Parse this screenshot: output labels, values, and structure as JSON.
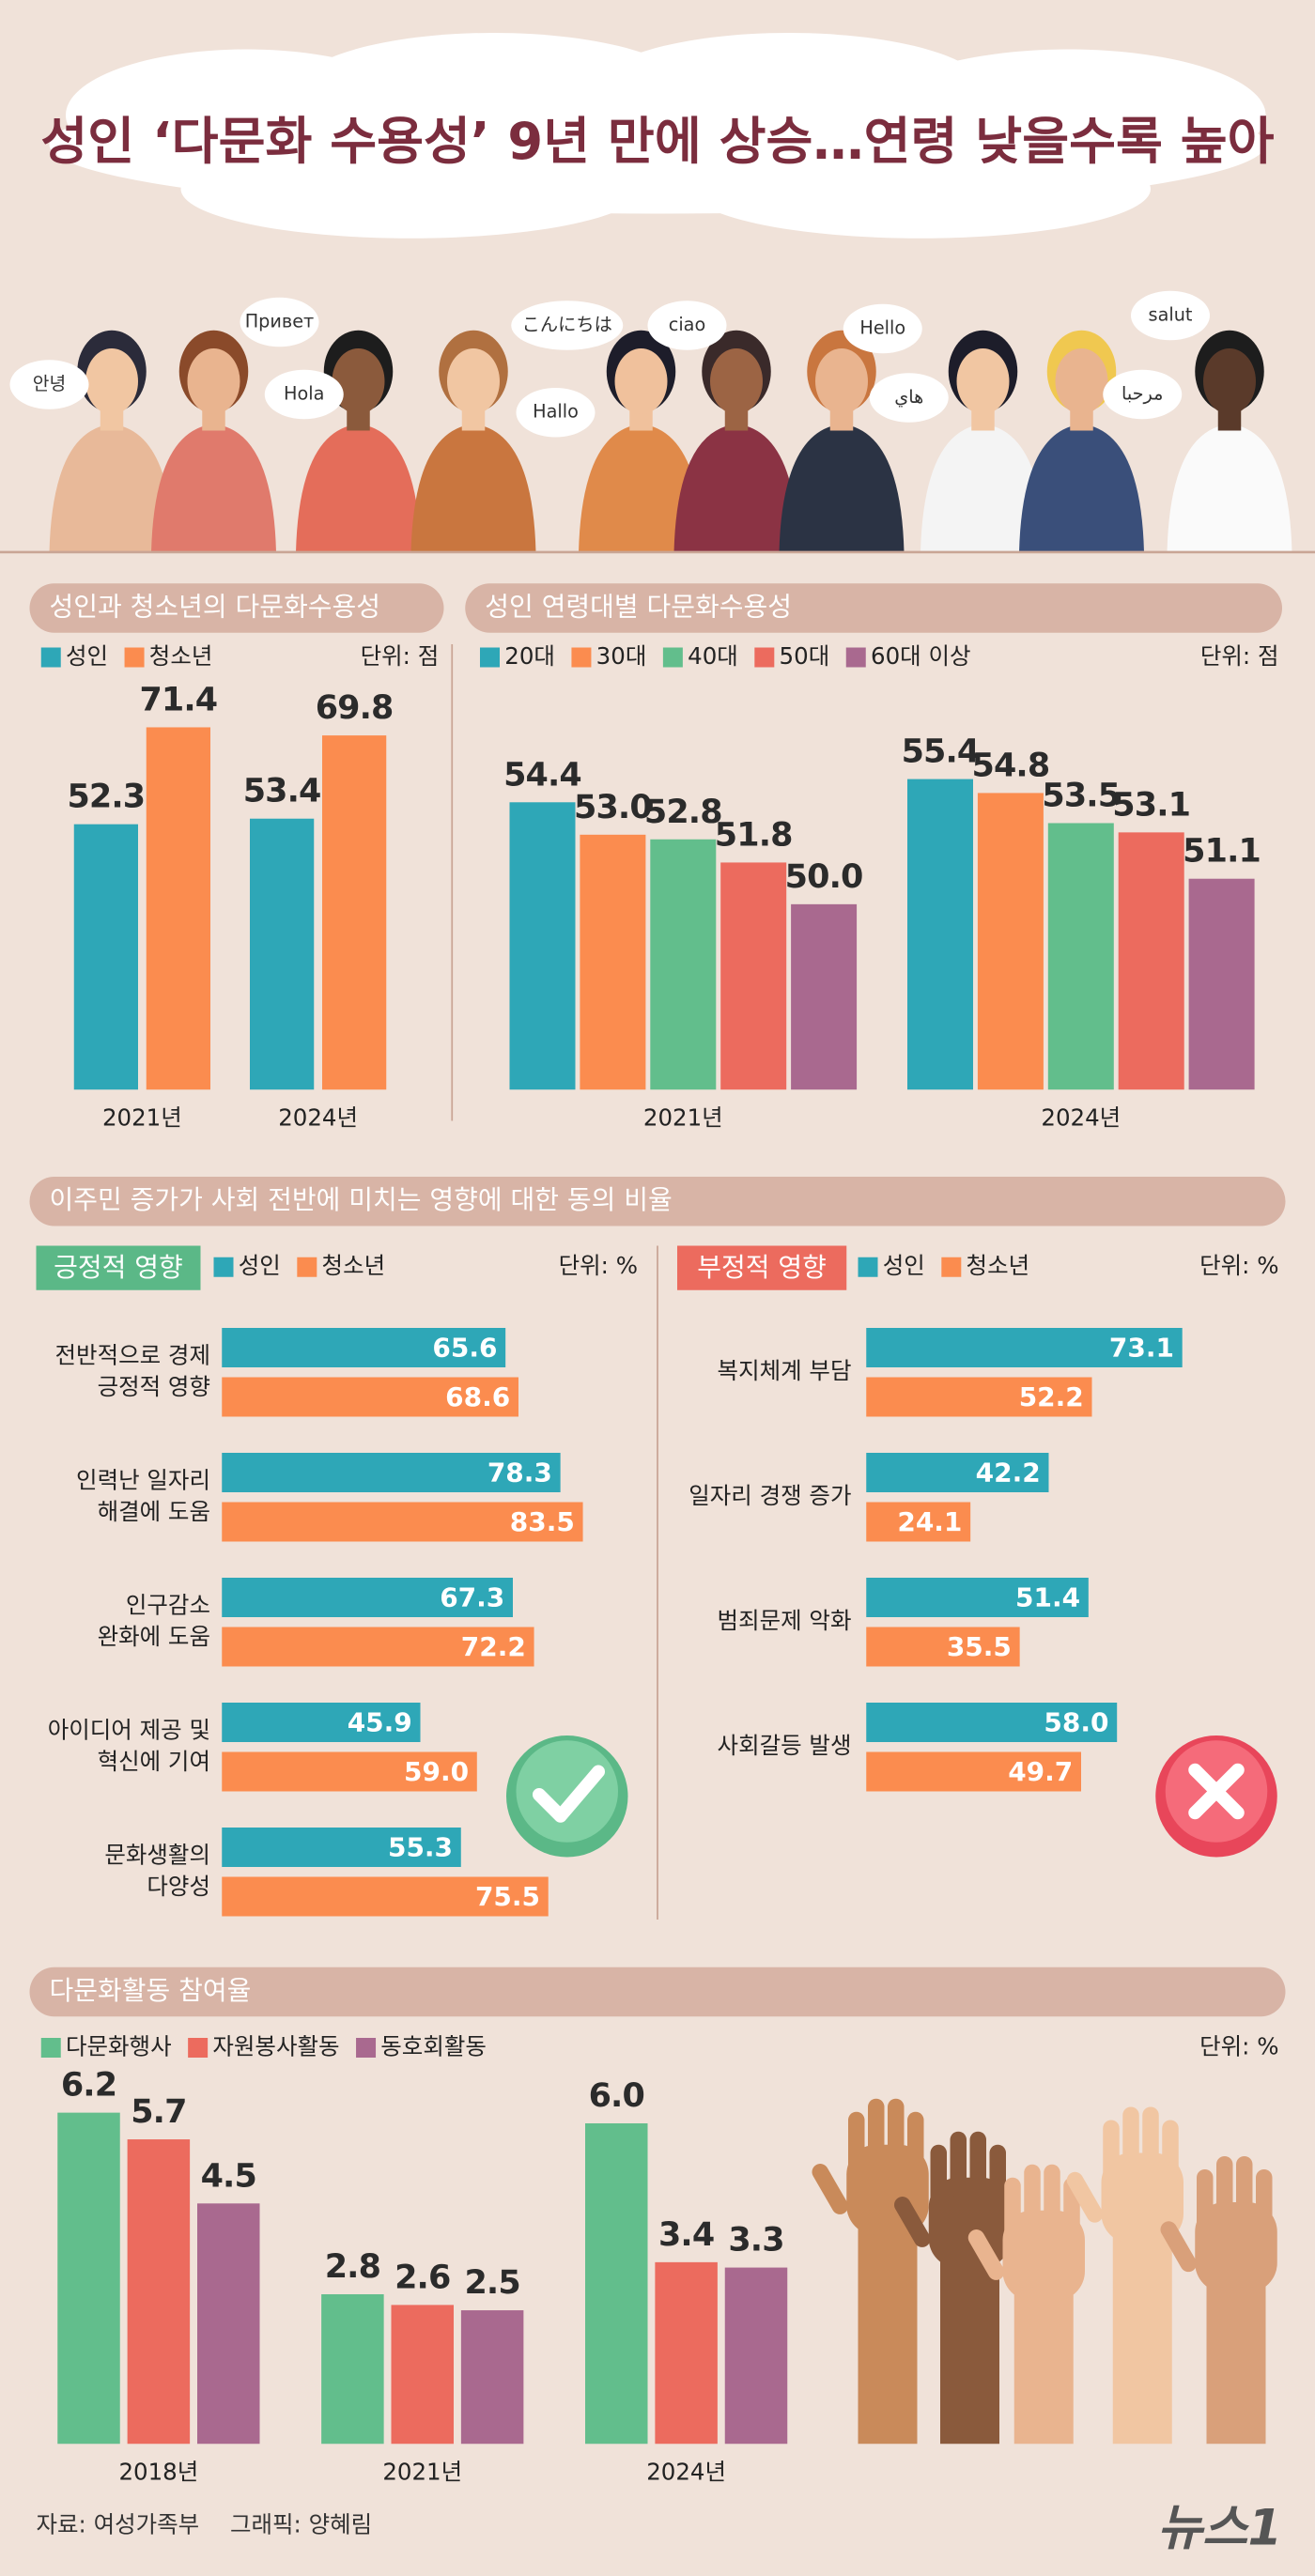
{
  "title": "성인 ‘다문화 수용성’ 9년 만에 상승…연령 낮을수록 높아",
  "greetings": [
    "안녕",
    "Привет",
    "Hola",
    "こんにちは",
    "Hallo",
    "ciao",
    "Hello",
    "هاي",
    "مرحبا",
    "salut"
  ],
  "section_title": "이주민 증가가 사회 전반에 미치는 영향에 대한 동의 비율",
  "source": "자료: 여성가족부",
  "credit": "그래픽: 양혜림",
  "logo": "뉴스1",
  "chart_data": [
    {
      "type": "bar",
      "title": "성인과 청소년의 다문화수용성",
      "unit": "단위: 점",
      "categories": [
        "2021년",
        "2024년"
      ],
      "ylim": [
        0,
        80
      ],
      "series": [
        {
          "name": "성인",
          "color": "#2ea7b7",
          "values": [
            52.3,
            53.4
          ]
        },
        {
          "name": "청소년",
          "color": "#fb8c4f",
          "values": [
            71.4,
            69.8
          ]
        }
      ]
    },
    {
      "type": "bar",
      "title": "성인 연령대별 다문화수용성",
      "unit": "단위: 점",
      "categories": [
        "2021년",
        "2024년"
      ],
      "ylim": [
        42,
        57
      ],
      "series": [
        {
          "name": "20대",
          "color": "#2ea7b7",
          "values": [
            54.4,
            55.4
          ]
        },
        {
          "name": "30대",
          "color": "#fb8c4f",
          "values": [
            53.0,
            54.8
          ],
          "value_labels": [
            "53.0",
            "54.8"
          ]
        },
        {
          "name": "40대",
          "color": "#62be8c",
          "values": [
            52.8,
            53.5
          ]
        },
        {
          "name": "50대",
          "color": "#ec6b5e",
          "values": [
            51.8,
            53.1
          ]
        },
        {
          "name": "60대 이상",
          "color": "#a9698f",
          "values": [
            50.0,
            51.1
          ],
          "value_labels": [
            "50.0",
            "51.1"
          ]
        }
      ]
    },
    {
      "type": "barh",
      "title": "긍정적 영향",
      "title_color": "#5bb887",
      "unit": "단위: %",
      "categories": [
        [
          "전반적으로 경제",
          "긍정적 영향"
        ],
        [
          "인력난 일자리",
          "해결에 도움"
        ],
        [
          "인구감소",
          "완화에 도움"
        ],
        [
          "아이디어 제공 및",
          "혁신에 기여"
        ],
        [
          "문화생활의",
          "다양성"
        ]
      ],
      "xlim": [
        0,
        100
      ],
      "series": [
        {
          "name": "성인",
          "color": "#2ea7b7",
          "values": [
            65.6,
            78.3,
            67.3,
            45.9,
            55.3
          ]
        },
        {
          "name": "청소년",
          "color": "#fb8c4f",
          "values": [
            68.6,
            83.5,
            72.2,
            59.0,
            75.5
          ],
          "value_labels": [
            "68.6",
            "83.5",
            "72.2",
            "59.0",
            "75.5"
          ]
        }
      ]
    },
    {
      "type": "barh",
      "title": "부정적 영향",
      "title_color": "#ec6b5e",
      "unit": "단위: %",
      "categories": [
        [
          "복지체계 부담"
        ],
        [
          "일자리 경쟁 증가"
        ],
        [
          "범죄문제 악화"
        ],
        [
          "사회갈등 발생"
        ]
      ],
      "xlim": [
        0,
        100
      ],
      "series": [
        {
          "name": "성인",
          "color": "#2ea7b7",
          "values": [
            73.1,
            42.2,
            51.4,
            58.0
          ],
          "value_labels": [
            "73.1",
            "42.2",
            "51.4",
            "58.0"
          ]
        },
        {
          "name": "청소년",
          "color": "#fb8c4f",
          "values": [
            52.2,
            24.1,
            35.5,
            49.7
          ]
        }
      ]
    },
    {
      "type": "bar",
      "title": "다문화활동 참여율",
      "unit": "단위: %",
      "categories": [
        "2018년",
        "2021년",
        "2024년"
      ],
      "ylim": [
        0,
        7
      ],
      "series": [
        {
          "name": "다문화행사",
          "color": "#62be8c",
          "values": [
            6.2,
            2.8,
            6.0
          ],
          "value_labels": [
            "6.2",
            "2.8",
            "6.0"
          ]
        },
        {
          "name": "자원봉사활동",
          "color": "#ec6b5e",
          "values": [
            5.7,
            2.6,
            3.4
          ]
        },
        {
          "name": "동호회활동",
          "color": "#a9698f",
          "values": [
            4.5,
            2.5,
            3.3
          ]
        }
      ]
    }
  ]
}
